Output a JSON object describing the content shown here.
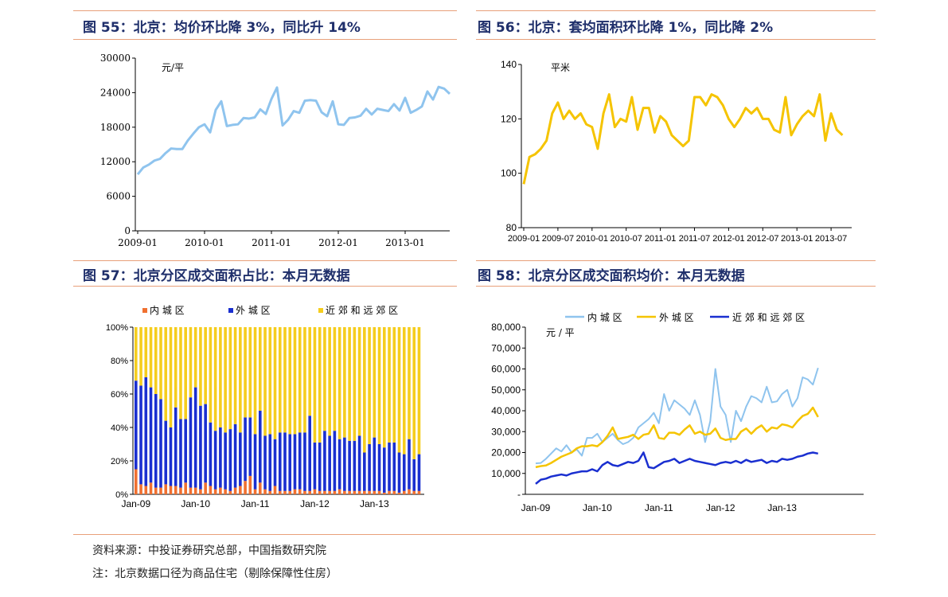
{
  "panels": [
    {
      "title": "图 55：北京：均价环比降 3%，同比升 14%"
    },
    {
      "title": "图 56：北京：套均面积环比降 1%，同比降 2%"
    },
    {
      "title": "图 57：北京分区成交面积占比：本月无数据"
    },
    {
      "title": "图 58：北京分区成交面积均价：本月无数据"
    }
  ],
  "footer": {
    "source": "资料来源：中投证券研究总部，中国指数研究院",
    "note": "注：北京数据口径为商品住宅（剔除保障性住房）"
  },
  "chart_data": [
    {
      "type": "line",
      "ylabel": "元/平",
      "ylim": [
        0,
        30000
      ],
      "yticks": [
        "0",
        "6000",
        "12000",
        "18000",
        "24000",
        "30000"
      ],
      "xticks": [
        "2009-01",
        "2010-01",
        "2011-01",
        "2012-01",
        "2013-01"
      ],
      "color": "#8fc4ee",
      "series": [
        {
          "values": [
            9800,
            11000,
            11500,
            12200,
            12500,
            13500,
            14300,
            14200,
            14200,
            15700,
            16900,
            18000,
            18500,
            17100,
            21000,
            22500,
            18200,
            18400,
            18500,
            19600,
            19500,
            19700,
            21100,
            20300,
            22900,
            24900,
            18300,
            19300,
            20800,
            20500,
            22600,
            22700,
            22600,
            20600,
            19900,
            22500,
            18500,
            18400,
            19600,
            19700,
            20000,
            21200,
            20200,
            21200,
            21000,
            20800,
            22000,
            20900,
            23100,
            20500,
            21000,
            21600,
            24200,
            22800,
            25000,
            24700,
            23800
          ]
        }
      ]
    },
    {
      "type": "line",
      "ylabel": "平米",
      "ylim": [
        80,
        140
      ],
      "yticks": [
        "80",
        "100",
        "120",
        "140"
      ],
      "xticks": [
        "2009-01",
        "2009-07",
        "2010-01",
        "2010-07",
        "2011-01",
        "2011-07",
        "2012-01",
        "2012-07",
        "2013-01",
        "2013-07"
      ],
      "color": "#f5c400",
      "series": [
        {
          "values": [
            96,
            106,
            107,
            109,
            112,
            122,
            126,
            120,
            123,
            120,
            122,
            118,
            117,
            109,
            122,
            129,
            117,
            120,
            119,
            128,
            116,
            124,
            124,
            115,
            121,
            119,
            114,
            112,
            110,
            112,
            128,
            128,
            125,
            129,
            128,
            125,
            120,
            117,
            120,
            124,
            122,
            124,
            120,
            120,
            116,
            115,
            128,
            114,
            118,
            121,
            123,
            121,
            129,
            112,
            122,
            116,
            114
          ]
        }
      ]
    },
    {
      "type": "bar",
      "stacked": true,
      "ylim": [
        0,
        100
      ],
      "yticks": [
        "0%",
        "20%",
        "40%",
        "60%",
        "80%",
        "100%"
      ],
      "xticks": [
        "Jan-09",
        "Jan-10",
        "Jan-11",
        "Jan-12",
        "Jan-13"
      ],
      "legend_position": "top",
      "series": [
        {
          "name": "内 城 区",
          "color": "#f07030",
          "values": [
            15,
            6,
            5,
            7,
            4,
            4,
            6,
            5,
            5,
            4,
            7,
            4,
            4,
            3,
            7,
            5,
            3,
            4,
            3,
            2,
            4,
            5,
            8,
            11,
            3,
            7,
            3,
            2,
            5,
            2,
            2,
            2,
            3,
            3,
            2,
            2,
            3,
            2,
            2,
            2,
            2,
            3,
            2,
            2,
            2,
            2,
            2,
            2,
            2,
            2,
            1,
            2,
            2,
            1,
            2,
            3,
            2,
            2
          ]
        },
        {
          "name": "外 城 区",
          "color": "#1a2fd0",
          "values": [
            53,
            59,
            65,
            57,
            56,
            53,
            38,
            35,
            47,
            41,
            38,
            54,
            60,
            50,
            47,
            38,
            35,
            36,
            34,
            37,
            38,
            32,
            38,
            35,
            33,
            43,
            32,
            34,
            28,
            35,
            35,
            34,
            33,
            34,
            35,
            45,
            28,
            29,
            36,
            33,
            36,
            30,
            32,
            30,
            30,
            33,
            23,
            28,
            32,
            28,
            27,
            29,
            29,
            24,
            22,
            30,
            19,
            22
          ]
        },
        {
          "name": "近 郊 和 远 郊 区",
          "color": "#f5cd1e",
          "values": [
            32,
            35,
            30,
            36,
            40,
            43,
            56,
            60,
            48,
            55,
            55,
            42,
            36,
            47,
            46,
            57,
            62,
            60,
            63,
            61,
            58,
            63,
            54,
            54,
            64,
            50,
            65,
            64,
            67,
            63,
            63,
            64,
            64,
            63,
            63,
            53,
            69,
            69,
            62,
            65,
            62,
            67,
            66,
            68,
            68,
            65,
            75,
            70,
            66,
            70,
            72,
            69,
            69,
            75,
            76,
            67,
            79,
            76
          ]
        }
      ]
    },
    {
      "type": "line",
      "ylabel": "元 / 平",
      "ylim": [
        0,
        80000
      ],
      "yticks": [
        "-",
        "10,000",
        "20,000",
        "30,000",
        "40,000",
        "50,000",
        "60,000",
        "70,000",
        "80,000"
      ],
      "xticks": [
        "Jan-09",
        "Jan-10",
        "Jan-11",
        "Jan-12",
        "Jan-13"
      ],
      "legend_position": "top",
      "series": [
        {
          "name": "内 城 区",
          "color": "#8fc4ee",
          "values": [
            14800,
            15000,
            17000,
            19500,
            22000,
            20500,
            23500,
            20000,
            21500,
            18500,
            27000,
            27000,
            29000,
            25000,
            27000,
            29000,
            26000,
            24000,
            25000,
            27000,
            32000,
            34000,
            36000,
            39000,
            34000,
            48000,
            40000,
            45000,
            43000,
            41000,
            38000,
            45000,
            38000,
            25000,
            35000,
            60000,
            42000,
            38000,
            25000,
            40000,
            35000,
            42000,
            47000,
            46000,
            44000,
            51500,
            44000,
            44500,
            48000,
            50000,
            42000,
            46000,
            56000,
            55000,
            52500,
            60500
          ]
        },
        {
          "name": "外 城 区",
          "color": "#f5c400",
          "values": [
            13000,
            13500,
            13800,
            15000,
            16500,
            18000,
            19000,
            20000,
            22000,
            23000,
            23000,
            23500,
            23000,
            25000,
            28000,
            32000,
            26500,
            27000,
            27500,
            28500,
            26500,
            28500,
            29000,
            33000,
            27000,
            26500,
            29500,
            29500,
            28500,
            31000,
            33000,
            29000,
            30000,
            28500,
            29000,
            31500,
            27000,
            26000,
            26500,
            26500,
            30000,
            31500,
            29000,
            31500,
            33000,
            30000,
            32000,
            31500,
            33500,
            33000,
            32000,
            35000,
            37500,
            38500,
            41500,
            37000
          ]
        },
        {
          "name": "近 郊 和 远 郊 区",
          "color": "#1a2fd0",
          "values": [
            5000,
            7000,
            7500,
            8500,
            9000,
            9500,
            9000,
            10000,
            10500,
            11000,
            11000,
            12000,
            11000,
            14000,
            15500,
            14000,
            13500,
            14500,
            15500,
            15000,
            16000,
            20000,
            13000,
            12500,
            14000,
            15500,
            16000,
            17000,
            15000,
            16000,
            17000,
            16000,
            15500,
            15000,
            14500,
            14000,
            15000,
            15500,
            15000,
            16000,
            15000,
            16500,
            15500,
            16000,
            16500,
            15000,
            16000,
            15500,
            17000,
            16500,
            17000,
            18000,
            18500,
            19500,
            20000,
            19500
          ]
        }
      ]
    }
  ]
}
